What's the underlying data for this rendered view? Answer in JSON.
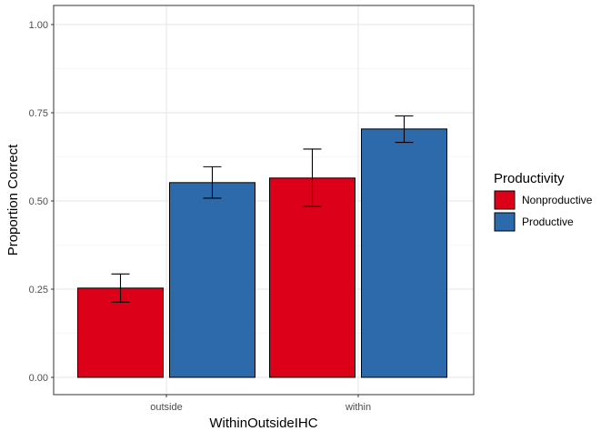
{
  "chart_data": {
    "type": "bar",
    "title": "",
    "xlabel": "WithinOutsideIHC",
    "ylabel": "Proportion Correct",
    "categories": [
      "outside",
      "within"
    ],
    "ylim": [
      0,
      1
    ],
    "yticks": [
      0,
      0.25,
      0.5,
      0.75,
      1
    ],
    "ytick_labels": [
      "0.00",
      "0.25",
      "0.50",
      "0.75",
      "1.00"
    ],
    "grid": true,
    "legend": {
      "title": "Productivity",
      "position": "right"
    },
    "series": [
      {
        "name": "Nonproductive",
        "color": "#dc0019",
        "values": [
          0.253,
          0.565
        ],
        "error_low": [
          0.213,
          0.484
        ],
        "error_high": [
          0.293,
          0.647
        ]
      },
      {
        "name": "Productive",
        "color": "#2c6aab",
        "values": [
          0.552,
          0.704
        ],
        "error_low": [
          0.508,
          0.666
        ],
        "error_high": [
          0.597,
          0.741
        ]
      }
    ]
  }
}
